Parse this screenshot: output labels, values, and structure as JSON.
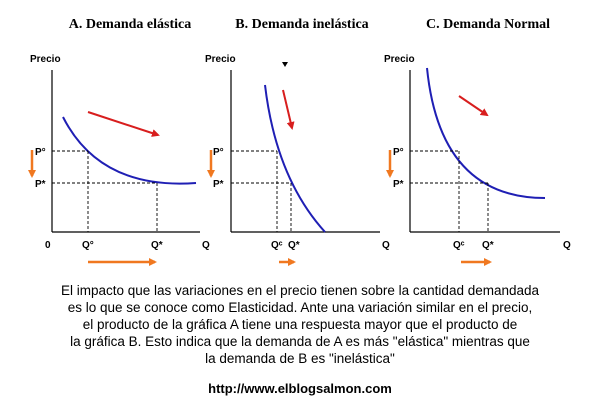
{
  "panels": [
    {
      "title": "A.  Demanda elástica",
      "y_axis_label": "Precio",
      "x_axis_label": "Q",
      "origin_label": "0",
      "price_labels": [
        "P°",
        "P*"
      ],
      "quantity_labels": [
        "Q°",
        "Q*"
      ],
      "curve_color": "#1f1fb4",
      "shift_arrow_color": "#d81e1e",
      "change_arrow_color": "#f07820"
    },
    {
      "title": "B.  Demanda inelástica",
      "y_axis_label": "Precio",
      "x_axis_label": "Q",
      "price_labels": [
        "P°",
        "P*"
      ],
      "quantity_labels": [
        "Qᶜ",
        "Q*"
      ],
      "curve_color": "#1f1fb4",
      "shift_arrow_color": "#d81e1e",
      "change_arrow_color": "#f07820"
    },
    {
      "title": "C.  Demanda Normal",
      "y_axis_label": "Precio",
      "x_axis_label": "Q",
      "price_labels": [
        "P°",
        "P*"
      ],
      "quantity_labels": [
        "Qᶜ",
        "Q*"
      ],
      "curve_color": "#1f1fb4",
      "shift_arrow_color": "#d81e1e",
      "change_arrow_color": "#f07820"
    }
  ],
  "caption_lines": [
    "El impacto que las variaciones en el precio tienen sobre la cantidad demandada",
    "es lo que se conoce como Elasticidad. Ante una variación similar en el precio,",
    "el producto de la gráfica A tiene una respuesta mayor que el  producto de",
    "la gráfica B. Esto indica que la demanda de A es más \"elástica\" mientras que",
    "la demanda de B es \"inelástica\""
  ],
  "source_url": "http://www.elblogsalmon.com"
}
